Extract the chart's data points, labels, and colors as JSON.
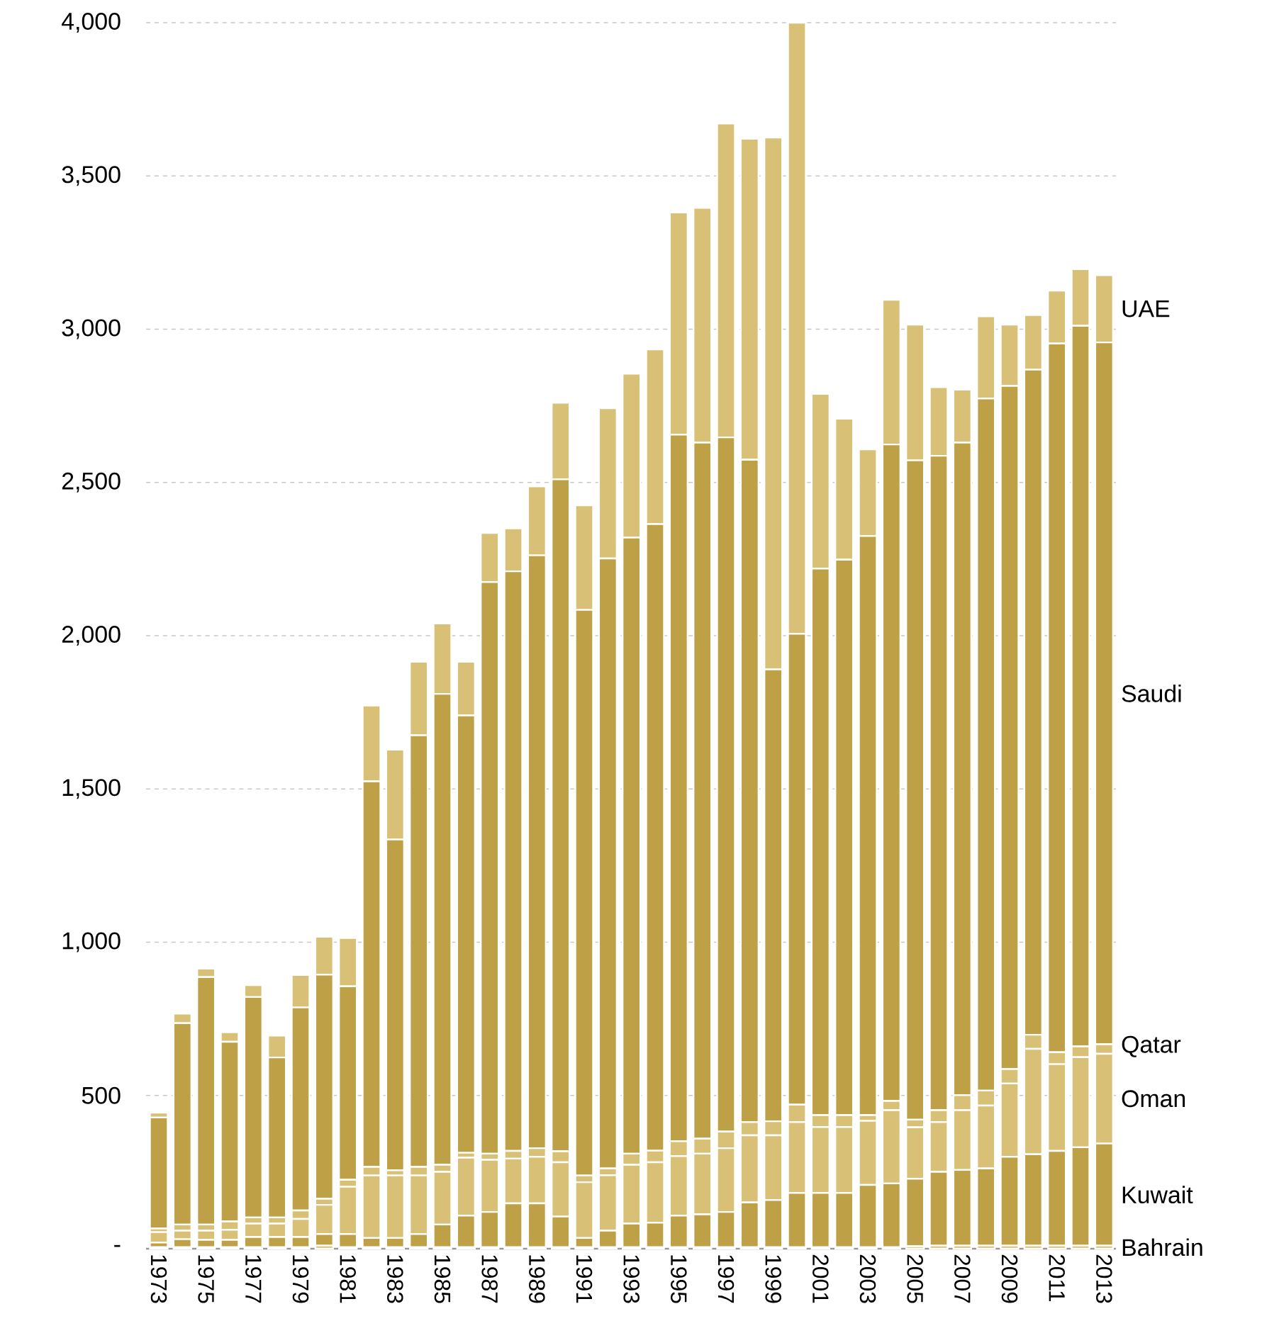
{
  "chart_data": {
    "type": "bar",
    "stacked": true,
    "grid": "y",
    "categories": [
      "1973",
      null,
      "1975",
      null,
      "1977",
      null,
      "1979",
      null,
      "1981",
      null,
      "1983",
      null,
      "1985",
      null,
      "1987",
      null,
      "1989",
      null,
      "1991",
      null,
      "1993",
      null,
      "1995",
      null,
      "1997",
      null,
      "1999",
      null,
      "2001",
      null,
      "2003",
      null,
      "2005",
      null,
      "2007",
      null,
      "2009",
      null,
      "2011",
      null,
      "2013"
    ],
    "series": [
      {
        "name": "Bahrain",
        "color": "#d9c077",
        "values": [
          5,
          5,
          5,
          5,
          5,
          5,
          5,
          10,
          5,
          5,
          5,
          5,
          5,
          5,
          5,
          5,
          5,
          5,
          5,
          5,
          5,
          5,
          5,
          5,
          5,
          5,
          5,
          5,
          5,
          5,
          5,
          5,
          8,
          10,
          10,
          10,
          10,
          10,
          10,
          10,
          10
        ]
      },
      {
        "name": "Kuwait",
        "color": "#bea147",
        "values": [
          15,
          26,
          24,
          24,
          33,
          33,
          33,
          38,
          43,
          30,
          30,
          43,
          74,
          103,
          115,
          143,
          143,
          100,
          30,
          54,
          77,
          80,
          103,
          107,
          115,
          146,
          154,
          177,
          177,
          177,
          203,
          208,
          220,
          241,
          247,
          252,
          290,
          298,
          309,
          321,
          333
        ]
      },
      {
        "name": "Oman",
        "color": "#d9c077",
        "values": [
          34,
          28,
          30,
          33,
          44,
          44,
          59,
          95,
          154,
          204,
          204,
          191,
          172,
          189,
          170,
          146,
          152,
          177,
          182,
          181,
          192,
          197,
          194,
          198,
          208,
          219,
          211,
          231,
          215,
          215,
          209,
          239,
          168,
          162,
          195,
          205,
          239,
          344,
          283,
          294,
          293
        ]
      },
      {
        "name": "Qatar",
        "color": "#d9c077",
        "values": [
          12,
          20,
          20,
          27,
          20,
          20,
          28,
          20,
          23,
          28,
          17,
          28,
          23,
          16,
          20,
          25,
          28,
          36,
          22,
          22,
          36,
          38,
          49,
          49,
          54,
          43,
          46,
          57,
          39,
          39,
          19,
          30,
          25,
          39,
          49,
          49,
          47,
          46,
          39,
          35,
          31
        ]
      },
      {
        "name": "Saudi",
        "color": "#bea147",
        "values": [
          362,
          657,
          807,
          586,
          719,
          522,
          662,
          731,
          631,
          1258,
          1079,
          1408,
          1536,
          1427,
          1865,
          1891,
          1934,
          2192,
          1845,
          1990,
          2010,
          2044,
          2305,
          2271,
          2265,
          2161,
          1474,
          1536,
          1783,
          1812,
          1889,
          2142,
          2151,
          2135,
          2129,
          2258,
          2229,
          2170,
          2312,
          2351,
          2290
        ]
      },
      {
        "name": "UAE",
        "color": "#d9c077",
        "values": [
          16,
          31,
          28,
          31,
          39,
          71,
          106,
          124,
          158,
          247,
          293,
          240,
          230,
          175,
          160,
          140,
          225,
          250,
          341,
          490,
          535,
          570,
          725,
          766,
          1024,
          1047,
          1735,
          1994,
          570,
          460,
          283,
          472,
          443,
          224,
          173,
          268,
          200,
          178,
          173,
          185,
          219
        ]
      }
    ],
    "ylim": [
      0,
      4000
    ],
    "yticks": [
      {
        "value": 0,
        "label": "-"
      },
      {
        "value": 500,
        "label": "500"
      },
      {
        "value": 1000,
        "label": "1,000"
      },
      {
        "value": 1500,
        "label": "1,500"
      },
      {
        "value": 2000,
        "label": "2,000"
      },
      {
        "value": 2500,
        "label": "2,500"
      },
      {
        "value": 3000,
        "label": "3,000"
      },
      {
        "value": 3500,
        "label": "3,500"
      },
      {
        "value": 4000,
        "label": "4,000"
      }
    ]
  }
}
